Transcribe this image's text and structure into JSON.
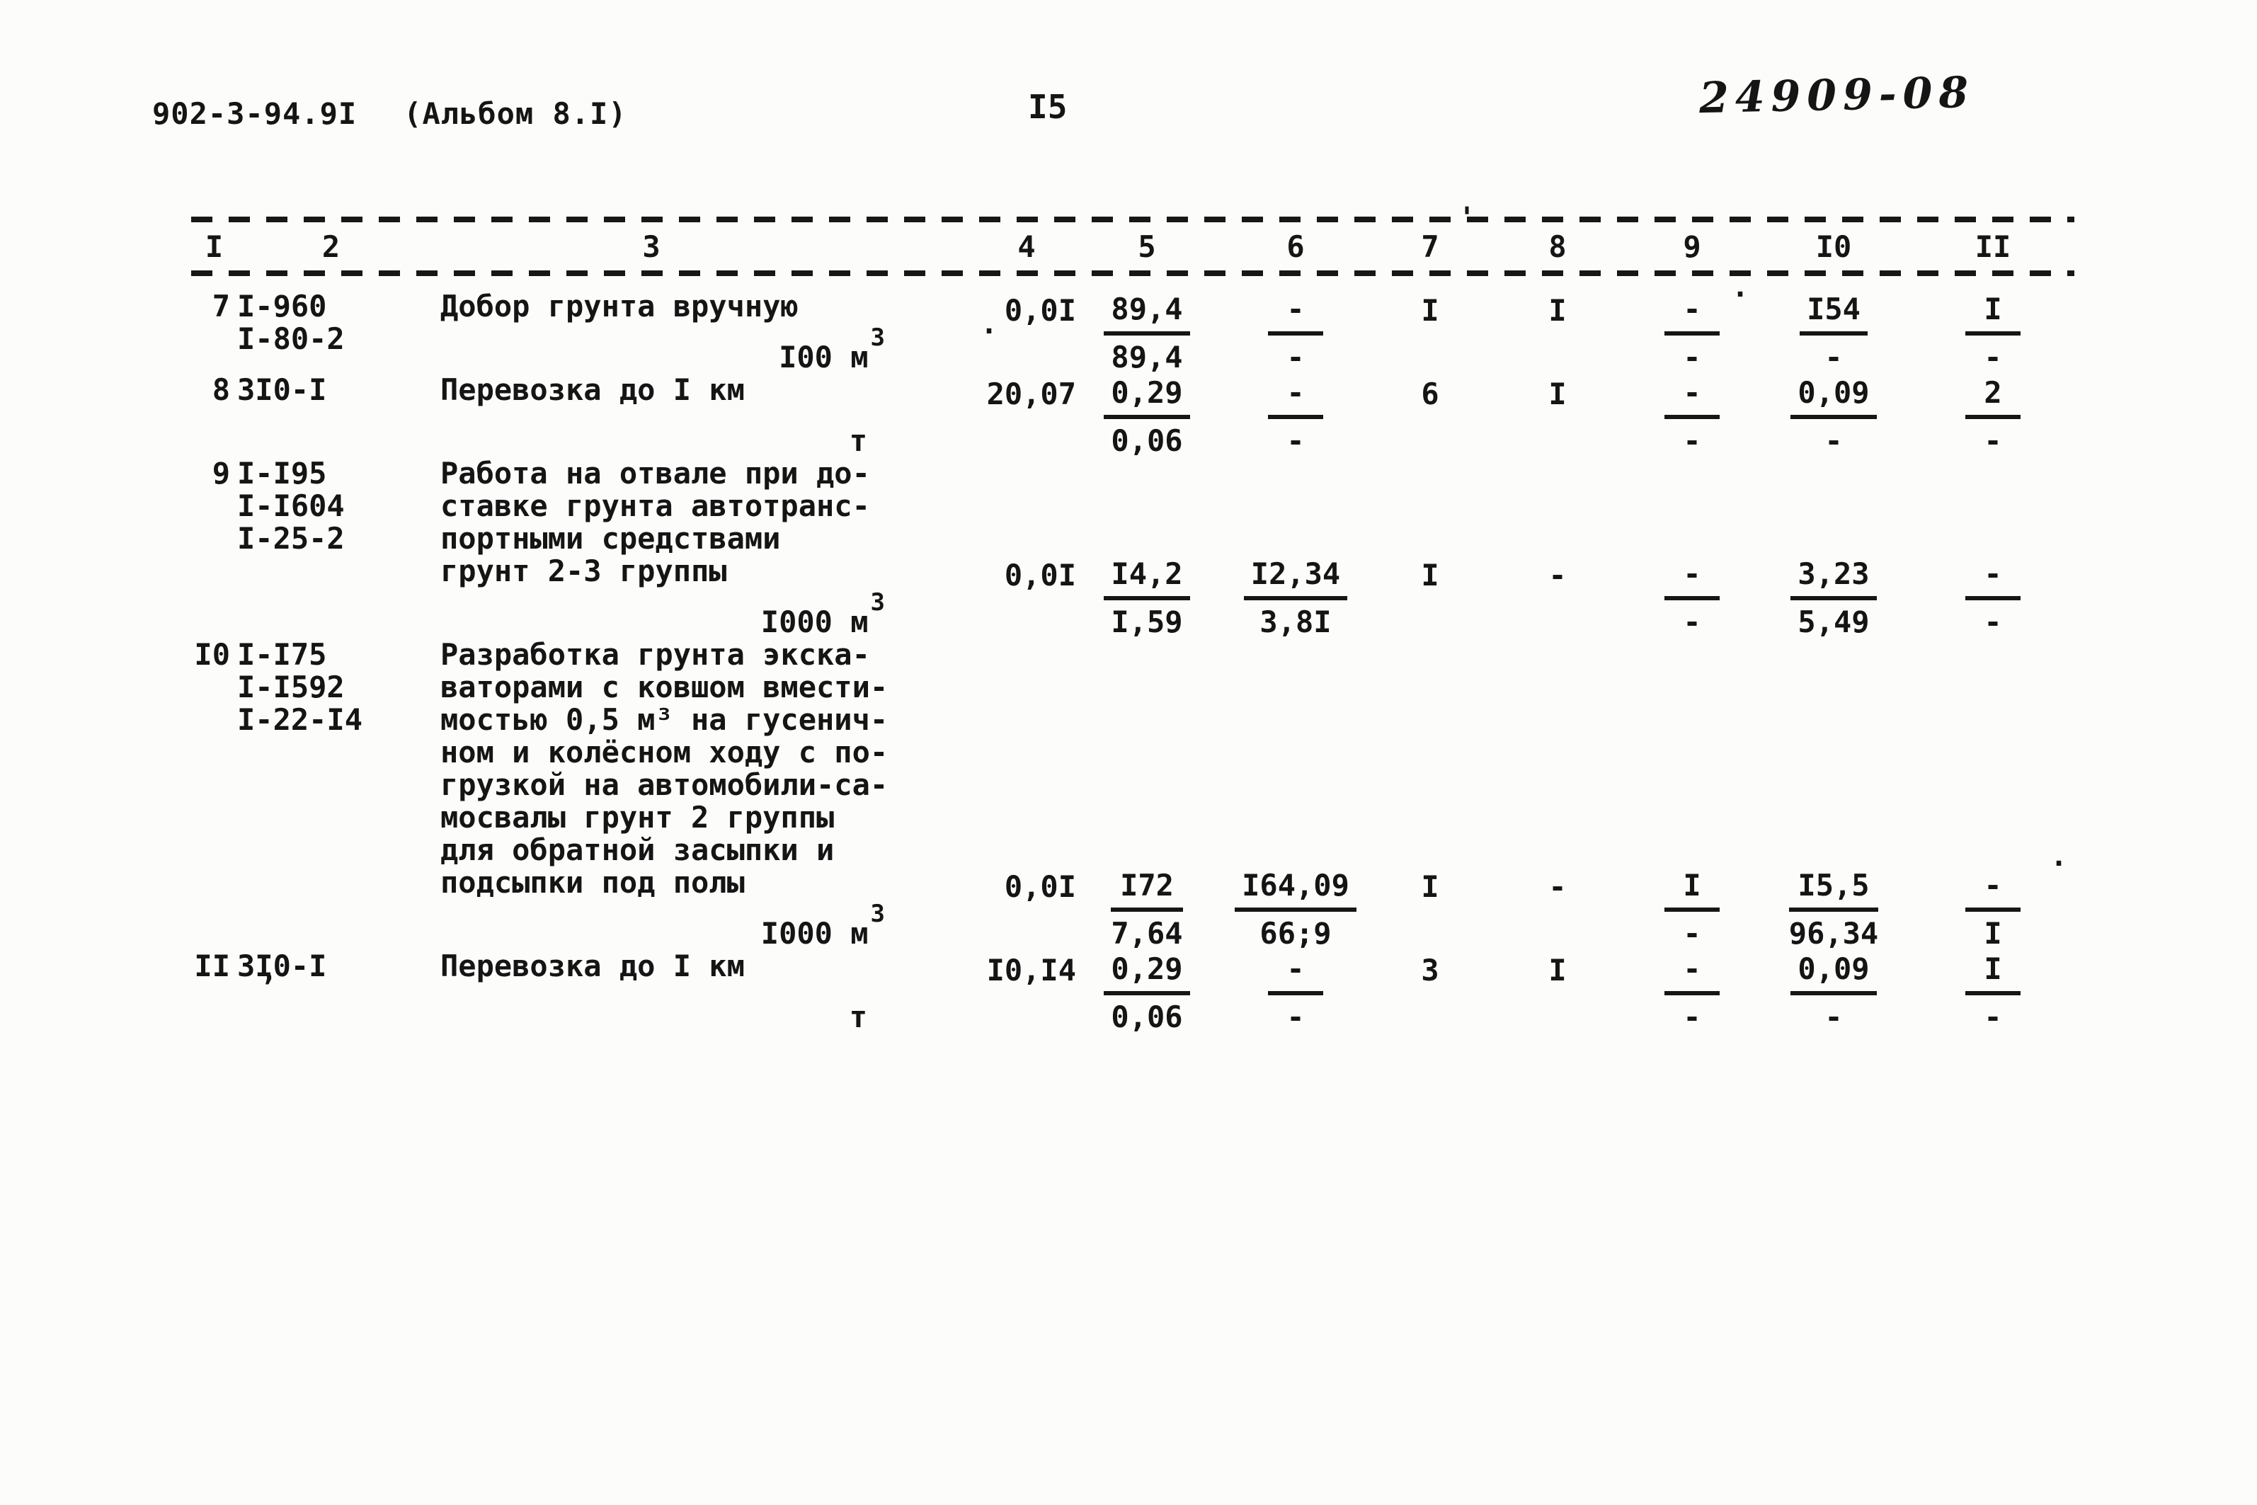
{
  "header": {
    "doc_number": "902-3-94.9I",
    "album": "(Альбом 8.I)",
    "page_number": "I5",
    "stamp": "24909-08"
  },
  "table": {
    "column_headers": [
      "I",
      "2",
      "3",
      "4",
      "5",
      "6",
      "7",
      "8",
      "9",
      "I0",
      "II"
    ],
    "rows": [
      {
        "num": "7",
        "codes": [
          "I-960",
          "I-80-2"
        ],
        "desc": [
          "Добор грунта вручную"
        ],
        "unit": "I00 м",
        "unit_sup": "3",
        "c4": "0,0I",
        "c5_top": "89,4",
        "c5_bot": "89,4",
        "c6_top": "-",
        "c6_bot": "-",
        "c7": "I",
        "c8": "I",
        "c9_top": "-",
        "c9_bot": "-",
        "c10_top": "I54",
        "c10_bot": "-",
        "c11_top": "I",
        "c11_bot": "-"
      },
      {
        "num": "8",
        "codes": [
          "3I0-I"
        ],
        "desc": [
          "Перевозка до I км"
        ],
        "unit": "т",
        "unit_sup": "",
        "c4": "20,07",
        "c5_top": "0,29",
        "c5_bot": "0,06",
        "c6_top": "-",
        "c6_bot": "-",
        "c7": "6",
        "c8": "I",
        "c9_top": "-",
        "c9_bot": "-",
        "c10_top": "0,09",
        "c10_bot": "-",
        "c11_top": "2",
        "c11_bot": "-"
      },
      {
        "num": "9",
        "codes": [
          "I-I95",
          "I-I604",
          "I-25-2"
        ],
        "desc": [
          "Работа на отвале при до-",
          "ставке грунта автотранс-",
          "портными средствами",
          "грунт 2-3 группы"
        ],
        "unit": "I000 м",
        "unit_sup": "3",
        "c4": "0,0I",
        "c5_top": "I4,2",
        "c5_bot": "I,59",
        "c6_top": "I2,34",
        "c6_bot": "3,8I",
        "c7": "I",
        "c8": "-",
        "c9_top": "-",
        "c9_bot": "-",
        "c10_top": "3,23",
        "c10_bot": "5,49",
        "c11_top": "-",
        "c11_bot": "-"
      },
      {
        "num": "I0",
        "codes": [
          "I-I75",
          "I-I592",
          "I-22-I4"
        ],
        "desc": [
          "Разработка грунта экска-",
          "ваторами с ковшом вмести-",
          "мостью 0,5 м³ на гусенич-",
          "ном и колёсном ходу с по-",
          "грузкой на автомобили-са-",
          "мосвалы грунт 2 группы",
          "для обратной засыпки и",
          "подсыпки под полы"
        ],
        "unit": "I000 м",
        "unit_sup": "3",
        "c4": "0,0I",
        "c5_top": "I72",
        "c5_bot": "7,64",
        "c6_top": "I64,09",
        "c6_bot": "66;9",
        "c7": "I",
        "c8": "-",
        "c9_top": "I",
        "c9_bot": "-",
        "c10_top": "I5,5",
        "c10_bot": "96,34",
        "c11_top": "-",
        "c11_bot": "I"
      },
      {
        "num": "II",
        "codes": [
          "3I0-I"
        ],
        "desc": [
          "Перевозка до I км"
        ],
        "unit": "т",
        "unit_sup": "",
        "c4": "I0,I4",
        "c5_top": "0,29",
        "c5_bot": "0,06",
        "c6_top": "-",
        "c6_bot": "-",
        "c7": "3",
        "c8": "I",
        "c9_top": "-",
        "c9_bot": "-",
        "c10_top": "0,09",
        "c10_bot": "-",
        "c11_top": "I",
        "c11_bot": "-"
      }
    ]
  },
  "artifacts": {
    "apostrophe": "'",
    "dot1": ".",
    "dot2": ".",
    "comma": ",",
    "dot3": "."
  }
}
